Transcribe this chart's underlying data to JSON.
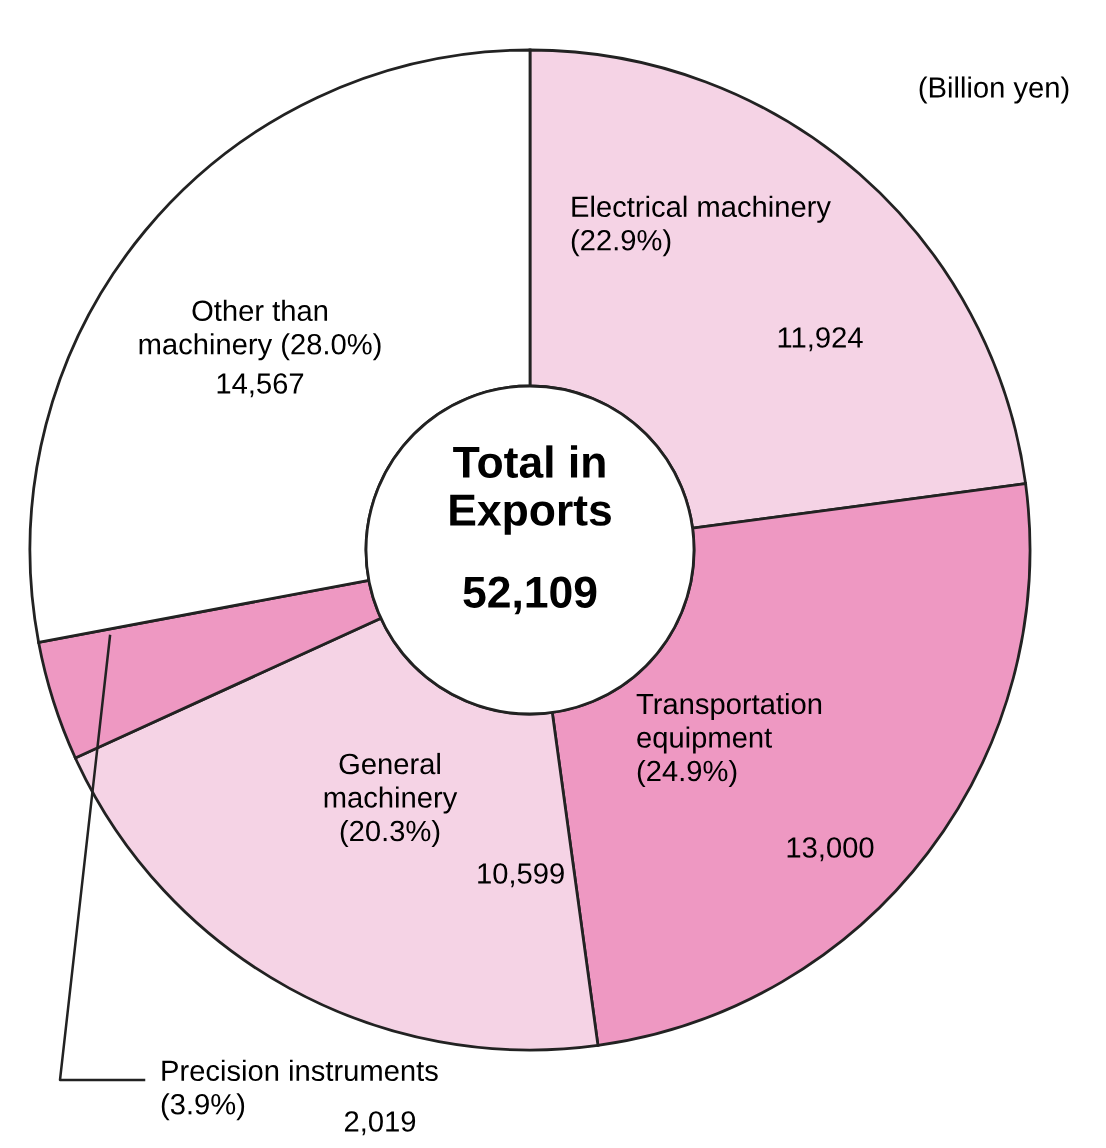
{
  "chart_data": {
    "type": "donut",
    "categories": [
      "Electrical machinery\n(22.9%)",
      "Transportation\nequipment\n(24.9%)",
      "General\nmachinery\n(20.3%)",
      "Precision instruments\n(3.9%)",
      "Other than\nmachinery (28.0%)"
    ],
    "values": [
      11924,
      13000,
      10599,
      2019,
      14567
    ],
    "value_labels": [
      "11,924",
      "13,000",
      "10,599",
      "2,019",
      "14,567"
    ],
    "colors": [
      "#f5d3e5",
      "#ee98c2",
      "#f5d3e5",
      "#ee98c2",
      "#ffffff"
    ],
    "annotations": [
      "Total in\nExports",
      "52,109",
      "(Billion yen)"
    ],
    "legend": false
  }
}
